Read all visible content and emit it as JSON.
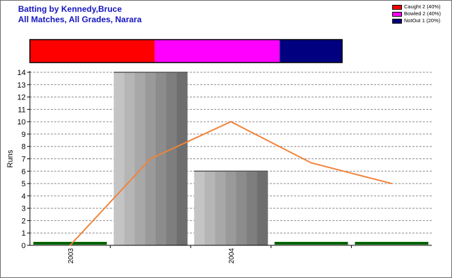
{
  "header": {
    "title_line1": "Batting by Kennedy,Bruce",
    "title_line2": "All Matches, All Grades, Narara"
  },
  "legend": {
    "items": [
      {
        "label": "Caught 2 (40%)",
        "color": "#ff0000"
      },
      {
        "label": "Bowled 2 (40%)",
        "color": "#ff00ff"
      },
      {
        "label": "NotOut 1 (20%)",
        "color": "#000080"
      }
    ]
  },
  "chart_data": {
    "type": "bar",
    "ylabel": "Runs",
    "ylim": [
      0,
      14
    ],
    "y_ticks": [
      0,
      1,
      2,
      3,
      4,
      5,
      6,
      7,
      8,
      9,
      10,
      11,
      12,
      13,
      14
    ],
    "grid": true,
    "x_tick_labels": [
      "2003",
      "2004"
    ],
    "x_tick_label_slots": [
      0.5,
      2.5
    ],
    "bars": {
      "values": [
        0,
        14,
        6,
        0,
        0
      ],
      "color": "#999999",
      "zero_marker_color": "#006400"
    },
    "line": {
      "values": [
        0,
        7,
        10,
        6.67,
        5
      ],
      "color": "#f0833a"
    },
    "dismissal_bar": {
      "segments": [
        {
          "label": "Caught",
          "value": 2,
          "color": "#ff0000"
        },
        {
          "label": "Bowled",
          "value": 2,
          "color": "#ff00ff"
        },
        {
          "label": "NotOut",
          "value": 1,
          "color": "#000080"
        }
      ]
    }
  }
}
